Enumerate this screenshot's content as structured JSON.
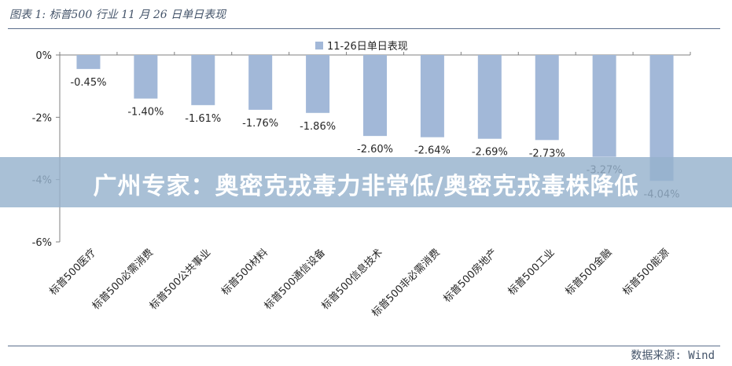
{
  "caption": "图表 1: 标普500 行业 11 月 26 日单日表现",
  "source": "数据来源: Wind",
  "banner": "广州专家：奥密克戎毒力非常低/奥密克戎毒株降低",
  "colors": {
    "bar": "#a2b8d8",
    "axis": "#808080",
    "text": "#262626"
  },
  "chart_data": {
    "type": "bar",
    "categories": [
      "标普500医疗",
      "标普500必需消费",
      "标普500公共事业",
      "标普500材料",
      "标普500通信设备",
      "标普500信息技术",
      "标普500非必需消费",
      "标普500房地产",
      "标普500工业",
      "标普500金融",
      "标普500能源"
    ],
    "series": [
      {
        "name": "11-26日单日表现",
        "values": [
          -0.45,
          -1.4,
          -1.61,
          -1.76,
          -1.86,
          -2.6,
          -2.64,
          -2.69,
          -2.73,
          -3.27,
          -4.04
        ]
      }
    ],
    "data_labels": [
      "-0.45%",
      "-1.40%",
      "-1.61%",
      "-1.76%",
      "-1.86%",
      "-2.60%",
      "-2.64%",
      "-2.69%",
      "-2.73%",
      "-3.27%",
      "-4.04%"
    ],
    "y_ticks": [
      "0%",
      "-2%",
      "-4%",
      "-6%"
    ],
    "y_tick_values": [
      0,
      -2,
      -4,
      -6
    ],
    "ylim": [
      -6,
      0
    ],
    "grid": false,
    "legend": "top-center"
  }
}
